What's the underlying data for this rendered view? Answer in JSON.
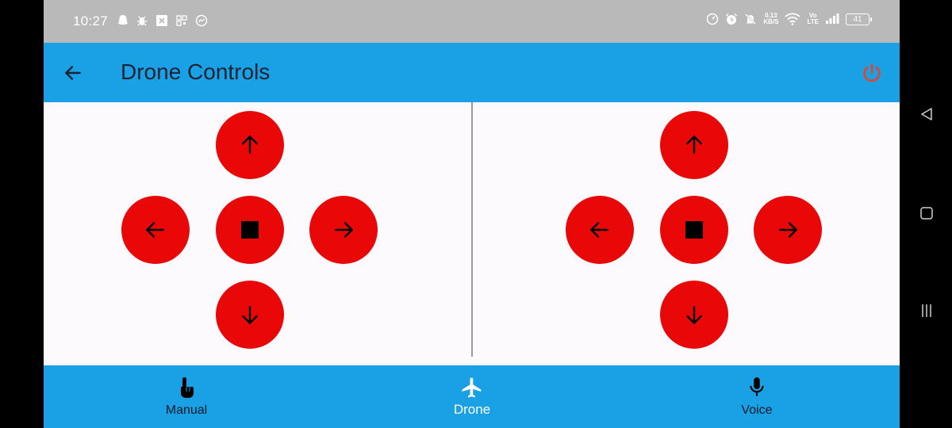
{
  "status_bar": {
    "time": "10:27",
    "net_speed_value": "0.13",
    "net_speed_unit": "KB/S",
    "volte_top": "Vo",
    "volte_bottom": "LTE",
    "battery_level": "41",
    "left_icons": [
      "snapchat-icon",
      "bug-icon",
      "x-notification-icon",
      "qr-icon",
      "messenger-icon"
    ],
    "right_icons": [
      "speedometer-icon",
      "alarm-icon",
      "mute-bell-icon",
      "wifi-icon",
      "signal-icon",
      "battery-icon"
    ]
  },
  "app_bar": {
    "title": "Drone Controls",
    "back_icon": "arrow-left-icon",
    "power_icon": "power-icon",
    "color": "#1aa0e4",
    "power_color": "#e53935"
  },
  "controls": {
    "button_color": "#e80808",
    "left_pad": {
      "up": "arrow-up-icon",
      "left": "arrow-left-icon",
      "stop": "stop-icon",
      "right": "arrow-right-icon",
      "down": "arrow-down-icon"
    },
    "right_pad": {
      "up": "arrow-up-icon",
      "left": "arrow-left-icon",
      "stop": "stop-icon",
      "right": "arrow-right-icon",
      "down": "arrow-down-icon"
    }
  },
  "bottom_nav": {
    "items": [
      {
        "label": "Manual",
        "icon": "touch-hand-icon",
        "selected": false
      },
      {
        "label": "Drone",
        "icon": "airplane-icon",
        "selected": true
      },
      {
        "label": "Voice",
        "icon": "microphone-icon",
        "selected": false
      }
    ]
  },
  "system_nav": [
    "back-triangle-icon",
    "home-square-icon",
    "recents-menu-icon"
  ]
}
